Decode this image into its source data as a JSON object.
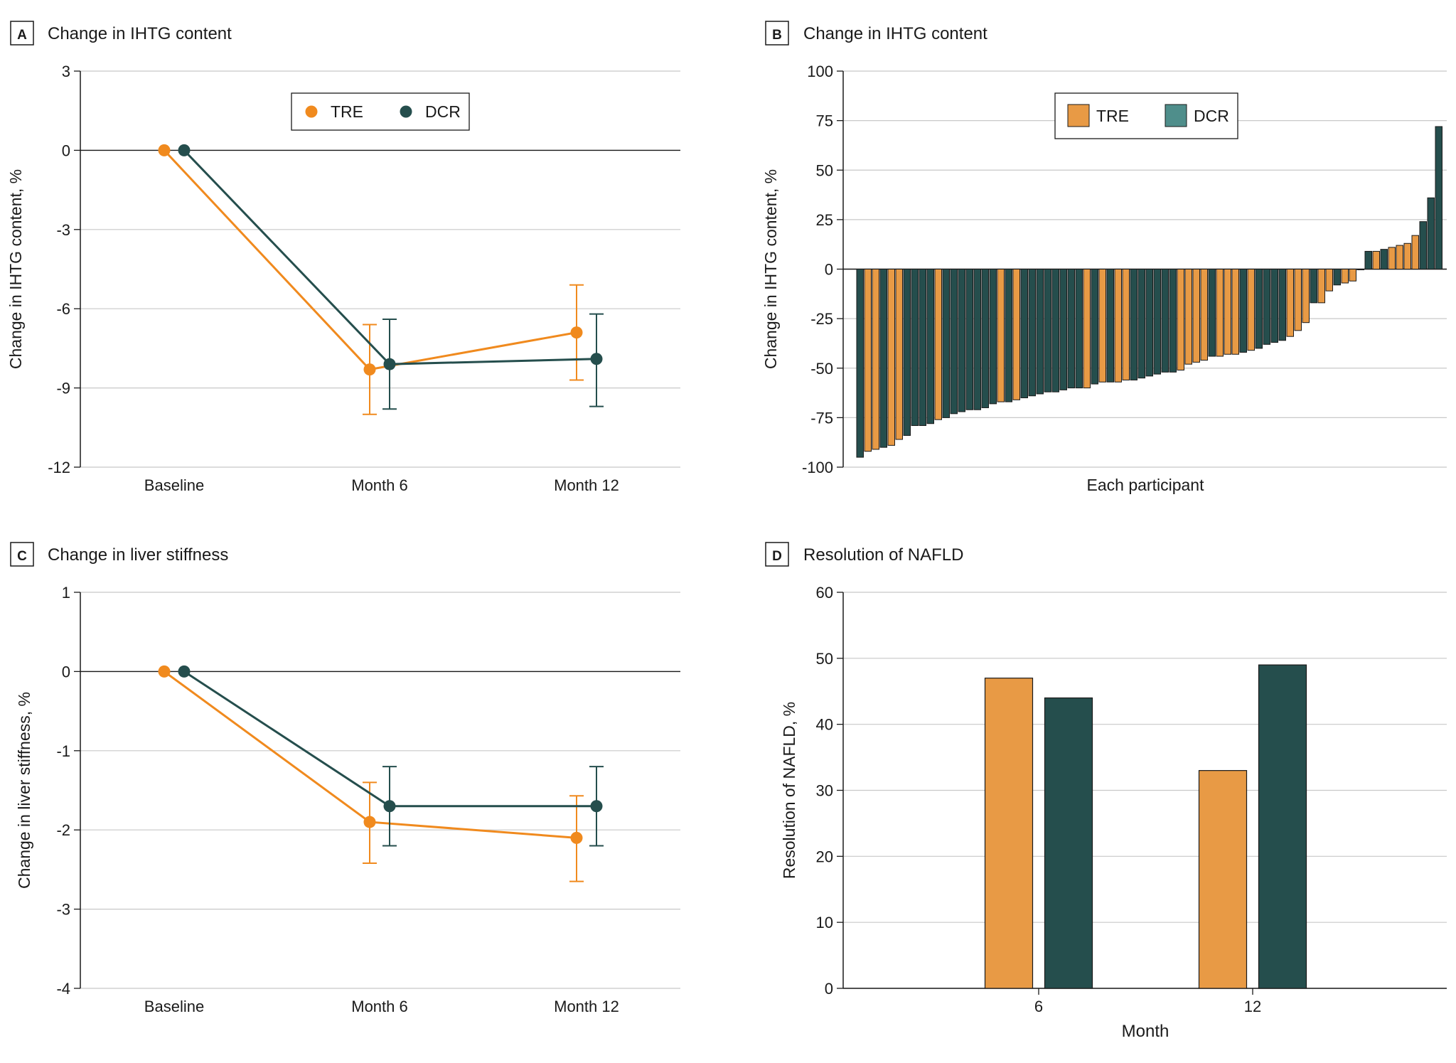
{
  "panels": [
    {
      "letter": "A",
      "chart_data": {
        "type": "line",
        "title": "Change in IHTG content",
        "ylabel": "Change in IHTG content, %",
        "xlabel": "",
        "categories": [
          "Baseline",
          "Month 6",
          "Month 12"
        ],
        "ylim": [
          -12,
          3
        ],
        "yticks": [
          3,
          0,
          -3,
          -6,
          -9,
          -12
        ],
        "ytick_labels": [
          "3",
          "0",
          "-3",
          "-6",
          "-9",
          "-12"
        ],
        "zero_line": true,
        "legend": {
          "position": "top-center",
          "marker": "circle"
        },
        "series": [
          {
            "name": "TRE",
            "color": "#F08A1E",
            "values": [
              0,
              -8.3,
              -6.9
            ],
            "lower": [
              null,
              -10.0,
              -8.7
            ],
            "upper": [
              null,
              -6.6,
              -5.1
            ]
          },
          {
            "name": "DCR",
            "color": "#254E4D",
            "values": [
              0,
              -8.1,
              -7.9
            ],
            "lower": [
              null,
              -9.8,
              -9.7
            ],
            "upper": [
              null,
              -6.4,
              -6.2
            ]
          }
        ]
      }
    },
    {
      "letter": "B",
      "chart_data": {
        "type": "bar",
        "subtype": "waterfall",
        "title": "Change in IHTG content",
        "ylabel": "Change in IHTG content, %",
        "xlabel": "Each participant",
        "ylim": [
          -100,
          100
        ],
        "yticks": [
          100,
          75,
          50,
          25,
          0,
          -25,
          -50,
          -75,
          -100
        ],
        "ytick_labels": [
          "100",
          "75",
          "50",
          "25",
          "0",
          "-25",
          "-50",
          "-75",
          "-100"
        ],
        "legend": {
          "position": "top-center",
          "marker": "square"
        },
        "colors": {
          "TRE": "#E89A45",
          "DCR": "#254E4D",
          "DCR_legend": "#4F8E8B"
        },
        "groups": [
          "TRE",
          "DCR"
        ],
        "values": [
          -95,
          -92,
          -91,
          -90,
          -89,
          -86,
          -84,
          -79,
          -79,
          -78,
          -76,
          -75,
          -73,
          -72,
          -71,
          -71,
          -70,
          -68,
          -67,
          -67,
          -66,
          -65,
          -64,
          -63,
          -62,
          -62,
          -61,
          -60,
          -60,
          -60,
          -58,
          -57,
          -57,
          -57,
          -56,
          -56,
          -55,
          -54,
          -53,
          -52,
          -52,
          -51,
          -48,
          -47,
          -46,
          -44,
          -44,
          -43,
          -43,
          -42,
          -41,
          -40,
          -38,
          -37,
          -36,
          -34,
          -31,
          -27,
          -17,
          -17,
          -11,
          -8,
          -7,
          -6,
          0,
          9,
          9,
          10,
          11,
          12,
          13,
          17,
          24,
          36,
          72
        ],
        "group_index": [
          1,
          0,
          0,
          1,
          0,
          0,
          1,
          1,
          1,
          1,
          0,
          1,
          1,
          1,
          1,
          1,
          1,
          1,
          0,
          1,
          0,
          1,
          1,
          1,
          1,
          1,
          1,
          1,
          1,
          0,
          1,
          0,
          1,
          0,
          0,
          1,
          1,
          1,
          1,
          1,
          1,
          0,
          0,
          0,
          0,
          1,
          0,
          0,
          0,
          1,
          0,
          1,
          1,
          1,
          1,
          0,
          0,
          0,
          1,
          0,
          0,
          1,
          0,
          0,
          1,
          1,
          0,
          1,
          0,
          0,
          0,
          0,
          1,
          1,
          1
        ]
      }
    },
    {
      "letter": "C",
      "chart_data": {
        "type": "line",
        "title": "Change in liver stiffness",
        "ylabel": "Change in liver stiffness, %",
        "xlabel": "",
        "categories": [
          "Baseline",
          "Month 6",
          "Month 12"
        ],
        "ylim": [
          -4,
          1
        ],
        "yticks": [
          1,
          0,
          -1,
          -2,
          -3,
          -4
        ],
        "ytick_labels": [
          "1",
          "0",
          "-1",
          "-2",
          "-3",
          "-4"
        ],
        "zero_line": true,
        "series": [
          {
            "name": "TRE",
            "color": "#F08A1E",
            "values": [
              0,
              -1.9,
              -2.1
            ],
            "lower": [
              null,
              -2.42,
              -2.65
            ],
            "upper": [
              null,
              -1.4,
              -1.57
            ]
          },
          {
            "name": "DCR",
            "color": "#254E4D",
            "values": [
              0,
              -1.7,
              -1.7
            ],
            "lower": [
              null,
              -2.2,
              -2.2
            ],
            "upper": [
              null,
              -1.2,
              -1.2
            ]
          }
        ]
      }
    },
    {
      "letter": "D",
      "chart_data": {
        "type": "bar",
        "title": "Resolution of NAFLD",
        "ylabel": "Resolution of NAFLD, %",
        "xlabel": "Month",
        "categories": [
          "6",
          "12"
        ],
        "ylim": [
          0,
          60
        ],
        "yticks": [
          60,
          50,
          40,
          30,
          20,
          10,
          0
        ],
        "ytick_labels": [
          "60",
          "50",
          "40",
          "30",
          "20",
          "10",
          "0"
        ],
        "series": [
          {
            "name": "TRE",
            "color": "#E89A45",
            "values": [
              47,
              33
            ]
          },
          {
            "name": "DCR",
            "color": "#254E4D",
            "values": [
              44,
              49
            ]
          }
        ]
      }
    }
  ]
}
